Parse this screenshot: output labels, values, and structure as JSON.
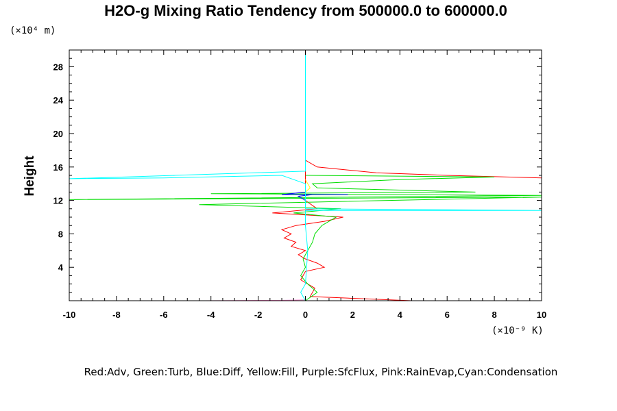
{
  "chart_data": {
    "type": "line",
    "title": "H2O-g Mixing Ratio Tendency from 500000.0 to 600000.0",
    "ylabel": "Height",
    "y_unit_label": "(×10⁴ m)",
    "x_unit_label": "(×10⁻⁹ K)",
    "xlim": [
      -10,
      10
    ],
    "ylim": [
      0,
      30
    ],
    "x_ticks": [
      -10,
      -8,
      -6,
      -4,
      -2,
      0,
      2,
      4,
      6,
      8,
      10
    ],
    "y_ticks": [
      4,
      8,
      12,
      16,
      20,
      24,
      28
    ],
    "grid": false,
    "legend_text": "Red:Adv, Green:Turb, Blue:Diff, Yellow:Fill, Purple:SfcFlux, Pink:RainEvap,Cyan:Condensation",
    "series": [
      {
        "name": "Adv",
        "color": "#ff0000",
        "points": [
          [
            0,
            0
          ],
          [
            4.5,
            0
          ],
          [
            0.2,
            0.5
          ],
          [
            0.4,
            1.5
          ],
          [
            -0.2,
            2.5
          ],
          [
            0,
            3.5
          ],
          [
            0.8,
            4
          ],
          [
            0.5,
            4.5
          ],
          [
            0,
            5
          ],
          [
            -0.3,
            5.5
          ],
          [
            0,
            6
          ],
          [
            -0.6,
            6.5
          ],
          [
            -0.4,
            7
          ],
          [
            -0.9,
            7.5
          ],
          [
            -0.6,
            8
          ],
          [
            -1,
            8.5
          ],
          [
            -0.4,
            9
          ],
          [
            0.8,
            9.5
          ],
          [
            1.6,
            10
          ],
          [
            -1.4,
            10.5
          ],
          [
            0.5,
            11
          ],
          [
            0,
            12
          ],
          [
            0,
            13
          ],
          [
            0,
            14
          ],
          [
            0,
            16
          ],
          [
            0,
            16.8
          ],
          [
            0.5,
            16
          ],
          [
            3,
            15.3
          ],
          [
            6,
            15
          ],
          [
            10,
            14.7
          ]
        ]
      },
      {
        "name": "Turb",
        "color": "#00dd00",
        "points": [
          [
            0,
            0
          ],
          [
            0.5,
            1
          ],
          [
            0.1,
            2
          ],
          [
            -0.2,
            3
          ],
          [
            0,
            4
          ],
          [
            -0.1,
            5
          ],
          [
            0.1,
            6
          ],
          [
            0.3,
            7
          ],
          [
            0.4,
            8
          ],
          [
            0.7,
            9
          ],
          [
            1.3,
            10
          ],
          [
            -0.5,
            10.5
          ],
          [
            1.5,
            11
          ],
          [
            -4.5,
            11.5
          ],
          [
            10,
            12.4
          ],
          [
            -10,
            12.1
          ],
          [
            10,
            12.6
          ],
          [
            -4,
            12.8
          ],
          [
            7.2,
            13
          ],
          [
            0.5,
            13.5
          ],
          [
            0.3,
            14
          ],
          [
            4,
            14.5
          ],
          [
            8,
            14.8
          ],
          [
            0,
            15
          ]
        ]
      },
      {
        "name": "Diff",
        "color": "#0000ff",
        "points": [
          [
            0,
            12
          ],
          [
            -0.3,
            12.5
          ],
          [
            0.3,
            12.7
          ],
          [
            1.8,
            12.7
          ],
          [
            -1,
            12.7
          ],
          [
            0,
            13
          ],
          [
            0,
            13.5
          ]
        ]
      },
      {
        "name": "Fill",
        "color": "#ffff00",
        "points": [
          [
            0,
            13
          ],
          [
            0.2,
            13.5
          ],
          [
            0.1,
            14
          ],
          [
            0,
            14.5
          ]
        ]
      },
      {
        "name": "SfcFlux",
        "color": "#aa00ff",
        "points": [
          [
            -4.5,
            0
          ],
          [
            0,
            0
          ]
        ]
      },
      {
        "name": "RainEvap",
        "color": "#ff88cc",
        "points": [
          [
            -4.3,
            0
          ],
          [
            -1,
            0.05
          ],
          [
            0,
            0.1
          ]
        ]
      },
      {
        "name": "Condensation",
        "color": "#00ffff",
        "points": [
          [
            0,
            0
          ],
          [
            -0.2,
            1
          ],
          [
            0,
            2
          ],
          [
            0.1,
            6
          ],
          [
            0,
            9
          ],
          [
            0,
            10.8
          ],
          [
            10,
            10.8
          ],
          [
            0,
            11
          ],
          [
            0,
            12
          ],
          [
            0,
            14
          ],
          [
            -1,
            15
          ],
          [
            -6,
            14.7
          ],
          [
            -10,
            14.6
          ],
          [
            0,
            15.5
          ],
          [
            0,
            16.5
          ],
          [
            0,
            30
          ]
        ]
      }
    ]
  }
}
